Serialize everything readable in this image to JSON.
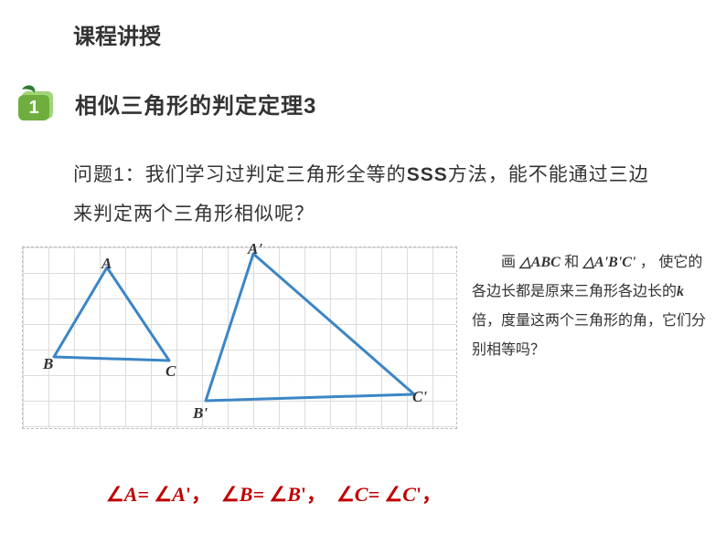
{
  "title": "课程讲授",
  "section_number": "1",
  "section_title": "相似三角形的判定定理3",
  "question_label": "问题1：",
  "question_part1": "我们学习过判定三角形全等的",
  "question_bold": "SSS",
  "question_part2": "方法，能不能通过三边来判定两个三角形相似呢？",
  "side": {
    "draw": "画",
    "tri1": "△ABC",
    "and": "和",
    "tri2pre": "△",
    "tri2A": "A",
    "tri2B": "B",
    "tri2C": "C",
    "prime": "'",
    "comma": "，",
    "rest1": "使它的各边长都是原来三角形各边长的",
    "k": "k",
    "rest2": "倍，度量这两个三角形的角，它们分别相等吗？"
  },
  "labels": {
    "A": "A",
    "B": "B",
    "C": "C",
    "Ap": "A'",
    "Bp": "B'",
    "Cp": "C'"
  },
  "equation": {
    "A": "A",
    "B": "B",
    "C": "C",
    "prime": "'",
    "eq_color": "#c00000"
  },
  "colors": {
    "title": "#333333",
    "triangle_stroke": "#3b86c6",
    "grid": "#dcdcdc",
    "border": "#bdbdbd",
    "badge_light": "#a4d47a",
    "badge_dark": "#6fae3e",
    "badge_leaf": "#2e7d32",
    "badge_num": "#ffffff"
  },
  "diagram": {
    "small": {
      "A": [
        92,
        22
      ],
      "B": [
        34,
        120
      ],
      "C": [
        160,
        124
      ]
    },
    "large": {
      "A": [
        252,
        7
      ],
      "B": [
        200,
        168
      ],
      "C": [
        428,
        161
      ]
    }
  }
}
